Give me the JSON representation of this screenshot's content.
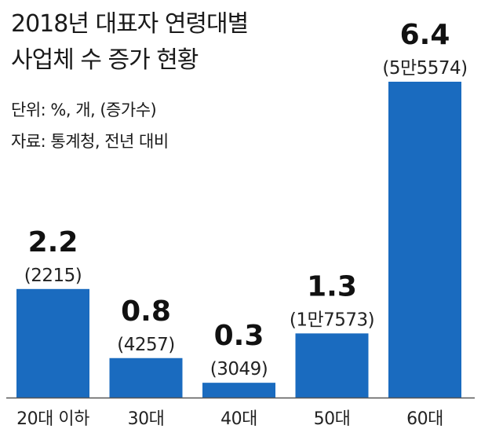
{
  "title_line1": "2018년 대표자 연령대별",
  "title_line2": "사업체 수 증가 현황",
  "unit_note": "단위: %, 개, (증가수)",
  "source_note": "자료: 통계청, 전년 대비",
  "colors": {
    "bar": "#1a6bbf",
    "baseline": "#555555"
  },
  "chart_data": {
    "type": "bar",
    "title": "2018년 대표자 연령대별 사업체 수 증가 현황",
    "categories": [
      "20대 이하",
      "30대",
      "40대",
      "50대",
      "60대"
    ],
    "values": [
      2.2,
      0.8,
      0.3,
      1.3,
      6.4
    ],
    "value_labels": [
      "2.2",
      "0.8",
      "0.3",
      "1.3",
      "6.4"
    ],
    "count_labels": [
      "(2215)",
      "(4257)",
      "(3049)",
      "(1만7573)",
      "(5만5574)"
    ],
    "unit": "%",
    "ylim": [
      0,
      6.4
    ],
    "grid": false,
    "legend": "none"
  }
}
